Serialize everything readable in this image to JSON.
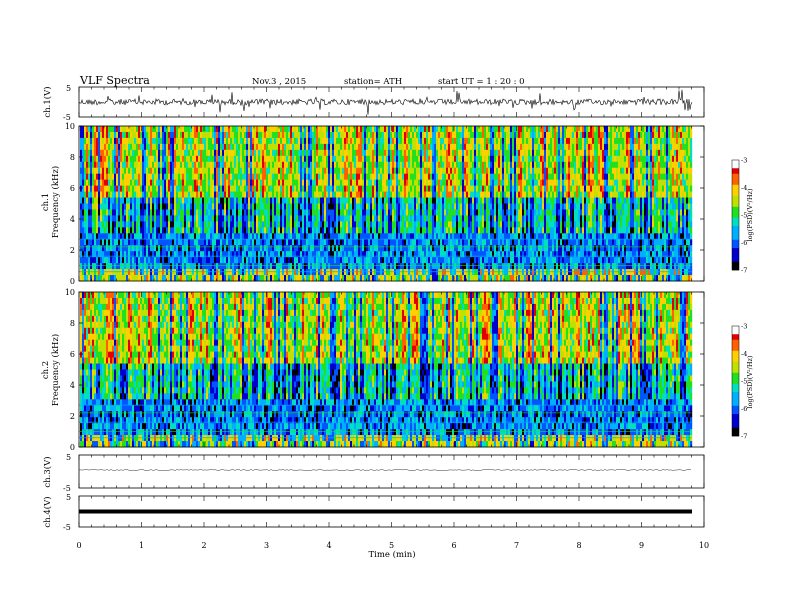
{
  "header": {
    "title": "VLF  Spectra",
    "date": "Nov.3  , 2015",
    "station": "station= ATH",
    "start": "start  UT  =   1  : 20 : 0"
  },
  "chart_data": [
    {
      "type": "line",
      "panel": "ch1-waveform",
      "ylabel": "ch.1(V)",
      "ylim": [
        -5,
        5
      ],
      "yticks": [
        "5",
        "-5"
      ],
      "description_values": {
        "baseline": 0,
        "typical_range": [
          -1.5,
          1.5
        ]
      }
    },
    {
      "type": "heatmap",
      "panel": "ch1-spectrogram",
      "ylabel": "ch.1\nFrequency  (kHz)",
      "ylabel_lines": [
        "ch.1",
        "Frequency  (kHz)"
      ],
      "ylim": [
        0,
        10
      ],
      "yticks": [
        "0",
        "2",
        "4",
        "6",
        "8",
        "10"
      ],
      "xlim": [
        0,
        9.8
      ],
      "colorbar": {
        "label": "log(PSD)(V²/Hz)",
        "range": [
          -7,
          -3
        ],
        "ticks": [
          "-3",
          "-4",
          "-5",
          "-6",
          "-7"
        ]
      }
    },
    {
      "type": "heatmap",
      "panel": "ch2-spectrogram",
      "ylabel_lines": [
        "ch.2",
        "Frequency  (kHz)"
      ],
      "ylim": [
        0,
        10
      ],
      "yticks": [
        "0",
        "2",
        "4",
        "6",
        "8",
        "10"
      ],
      "xlim": [
        0,
        9.8
      ],
      "colorbar": {
        "label": "log(PSD)(V²/Hz)",
        "range": [
          -7,
          -3
        ],
        "ticks": [
          "-3",
          "-4",
          "-5",
          "-6",
          "-7"
        ]
      }
    },
    {
      "type": "line",
      "panel": "ch3-waveform",
      "ylabel": "ch.3(V)",
      "ylim": [
        -5,
        5
      ],
      "yticks": [
        "5",
        "-5"
      ],
      "description_values": {
        "baseline": 0
      }
    },
    {
      "type": "line",
      "panel": "ch4-waveform",
      "ylabel": "ch.4(V)",
      "ylim": [
        -5,
        5
      ],
      "yticks": [
        "5",
        "-5"
      ],
      "description_values": {
        "baseline": 0
      }
    }
  ],
  "xaxis": {
    "label": "Time  (min)",
    "range": [
      0,
      10
    ],
    "ticks": [
      "0",
      "1",
      "2",
      "3",
      "4",
      "5",
      "6",
      "7",
      "8",
      "9",
      "10"
    ]
  },
  "colors": {
    "colormap": [
      "#000000",
      "#0000cc",
      "#0055ff",
      "#00b0ff",
      "#00e0c0",
      "#20e020",
      "#c0e000",
      "#ffd000",
      "#ff6000",
      "#e00000",
      "#ffffff"
    ]
  }
}
